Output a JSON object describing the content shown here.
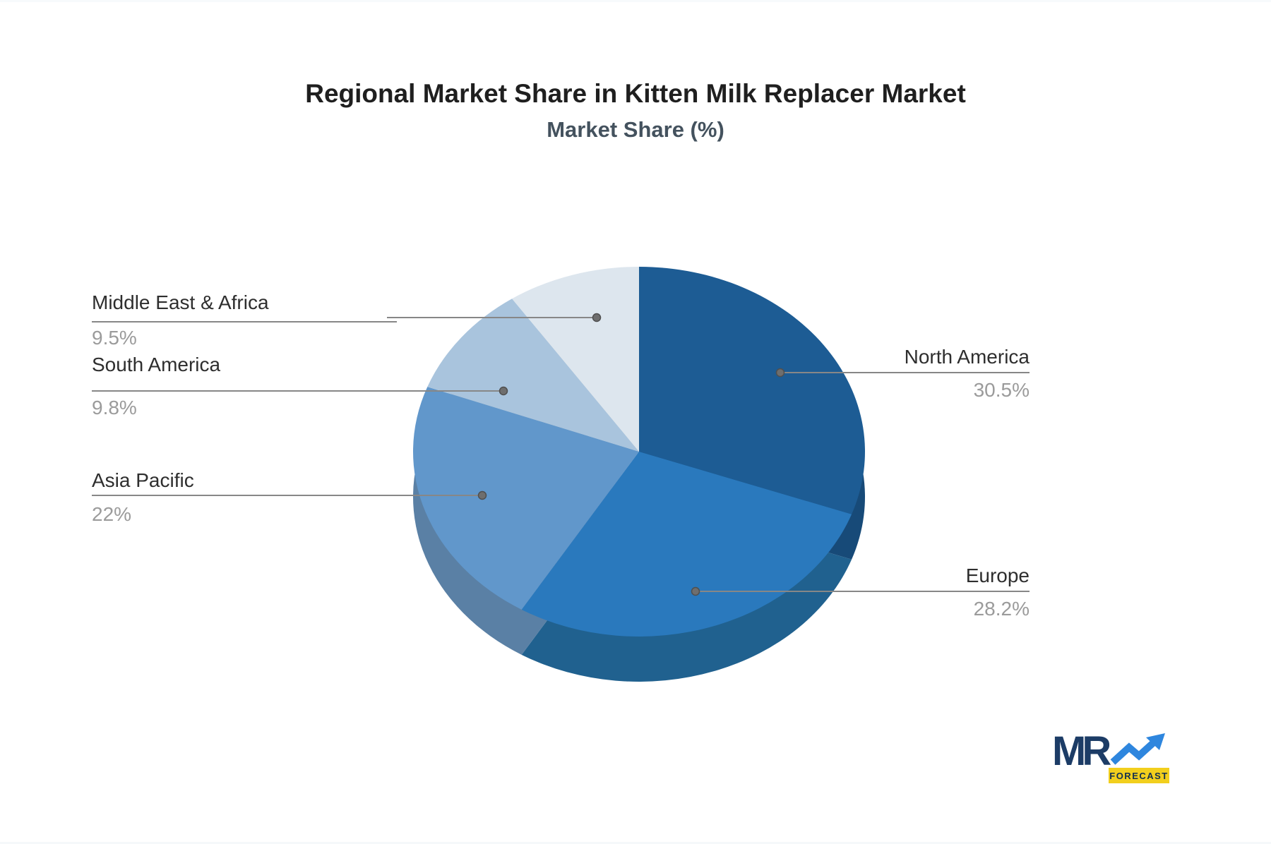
{
  "page": {
    "background": "#ffffff",
    "top_strip_color": "#f7fafc",
    "bottom_strip_color": "#f5f8fa"
  },
  "header": {
    "title": "Regional Market Share in Kitten Milk Replacer Market",
    "subtitle": "Market Share (%)",
    "title_color": "#1f1f1f",
    "subtitle_color": "#44525e"
  },
  "chart_data": {
    "type": "pie",
    "style": "3d",
    "title": "Regional Market Share in Kitten Milk Replacer Market",
    "subtitle": "Market Share (%)",
    "unit": "%",
    "legend": "none",
    "start_angle_deg": 0,
    "direction": "clockwise",
    "slices": [
      {
        "label": "North America",
        "value": 30.5,
        "value_label": "30.5%",
        "color": "#1d5c94",
        "side_color": "#174a78",
        "label_side": "right"
      },
      {
        "label": "Europe",
        "value": 28.2,
        "value_label": "28.2%",
        "color": "#2a79bd",
        "side_color": "#20618f",
        "label_side": "right"
      },
      {
        "label": "Asia Pacific",
        "value": 22,
        "value_label": "22%",
        "color": "#6197cb",
        "side_color": "#5a80a5",
        "label_side": "left"
      },
      {
        "label": "South America",
        "value": 9.8,
        "value_label": "9.8%",
        "color": "#a9c4dd",
        "side_color": "#8ba6bf",
        "label_side": "left"
      },
      {
        "label": "Middle East & Africa",
        "value": 9.5,
        "value_label": "9.5%",
        "color": "#dde6ee",
        "side_color": "#b9c6d2",
        "label_side": "left"
      }
    ],
    "label_text_color": "#2e2e2e",
    "value_text_color": "#9b9b9b",
    "leader_line_color": "#878787",
    "leader_dot_color": "#6e6e6e"
  },
  "logo": {
    "text": "MR",
    "tag": "FORECAST",
    "text_color": "#1c3c66",
    "arrow_color": "#2e86de",
    "tag_bg": "#f2cf1d",
    "tag_text_color": "#14304f"
  }
}
